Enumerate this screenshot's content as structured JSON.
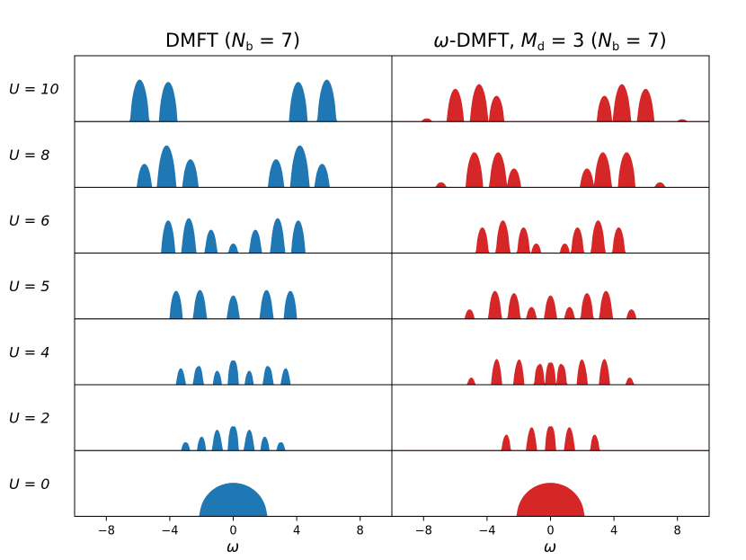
{
  "chart_data": {
    "type": "area",
    "panels": [
      {
        "title": "DMFT (N_b = 7)",
        "color": "#1f77b4"
      },
      {
        "title": "ω-DMFT, M_d = 3 (N_b = 7)",
        "color": "#d62728"
      }
    ],
    "rows": [
      {
        "label": "U = 10",
        "U": 10
      },
      {
        "label": "U = 8",
        "U": 8
      },
      {
        "label": "U = 6",
        "U": 6
      },
      {
        "label": "U = 5",
        "U": 5
      },
      {
        "label": "U = 4",
        "U": 4
      },
      {
        "label": "U = 2",
        "U": 2
      },
      {
        "label": "U = 0",
        "U": 0
      }
    ],
    "xlim": [
      -10,
      10
    ],
    "xticks": [
      -8,
      -4,
      0,
      4,
      8
    ],
    "xtick_labels": [
      "−8",
      "−4",
      "0",
      "4",
      "8"
    ],
    "xlabel": "ω",
    "ylabel": "",
    "peaks_omega_value_height": {
      "dmft": {
        "10": [
          [
            -5.9,
            0.9
          ],
          [
            -4.1,
            0.85
          ],
          [
            4.1,
            0.85
          ],
          [
            5.9,
            0.9
          ]
        ],
        "8": [
          [
            -5.6,
            0.5
          ],
          [
            -4.2,
            0.9
          ],
          [
            -2.7,
            0.6
          ],
          [
            2.7,
            0.6
          ],
          [
            4.2,
            0.9
          ],
          [
            5.6,
            0.5
          ]
        ],
        "6": [
          [
            -4.1,
            0.7
          ],
          [
            -2.8,
            0.75
          ],
          [
            -1.4,
            0.5
          ],
          [
            0,
            0.2
          ],
          [
            1.4,
            0.5
          ],
          [
            2.8,
            0.75
          ],
          [
            4.1,
            0.7
          ]
        ],
        "5": [
          [
            -3.6,
            0.6
          ],
          [
            -2.1,
            0.62
          ],
          [
            0,
            0.5
          ],
          [
            2.1,
            0.62
          ],
          [
            3.6,
            0.6
          ]
        ],
        "4": [
          [
            -3.3,
            0.35
          ],
          [
            -2.2,
            0.45
          ],
          [
            -1.0,
            0.3
          ],
          [
            0,
            0.6
          ],
          [
            1.0,
            0.3
          ],
          [
            2.2,
            0.45
          ],
          [
            3.3,
            0.35
          ]
        ],
        "2": [
          [
            -3.0,
            0.2
          ],
          [
            -2.0,
            0.3
          ],
          [
            -1.0,
            0.45
          ],
          [
            0,
            0.6
          ],
          [
            1.0,
            0.45
          ],
          [
            2.0,
            0.3
          ],
          [
            3.0,
            0.2
          ]
        ],
        "0": [
          [
            0,
            0.95
          ]
        ]
      },
      "omega_dmft": {
        "10": [
          [
            -7.8,
            0.06
          ],
          [
            -6.0,
            0.7
          ],
          [
            -4.5,
            0.8
          ],
          [
            -3.4,
            0.55
          ],
          [
            3.4,
            0.55
          ],
          [
            4.5,
            0.8
          ],
          [
            6.0,
            0.7
          ],
          [
            8.3,
            0.04
          ]
        ],
        "8": [
          [
            -6.9,
            0.1
          ],
          [
            -4.8,
            0.75
          ],
          [
            -3.3,
            0.75
          ],
          [
            -2.3,
            0.4
          ],
          [
            2.3,
            0.4
          ],
          [
            3.3,
            0.75
          ],
          [
            4.8,
            0.75
          ],
          [
            6.9,
            0.1
          ]
        ],
        "6": [
          [
            -4.3,
            0.55
          ],
          [
            -3.0,
            0.7
          ],
          [
            -1.7,
            0.55
          ],
          [
            -0.9,
            0.2
          ],
          [
            0.9,
            0.2
          ],
          [
            1.7,
            0.55
          ],
          [
            3.0,
            0.7
          ],
          [
            4.3,
            0.55
          ]
        ],
        "5": [
          [
            -5.1,
            0.2
          ],
          [
            -3.5,
            0.6
          ],
          [
            -2.3,
            0.55
          ],
          [
            -1.2,
            0.25
          ],
          [
            0,
            0.5
          ],
          [
            1.2,
            0.25
          ],
          [
            2.3,
            0.55
          ],
          [
            3.5,
            0.6
          ],
          [
            5.1,
            0.2
          ]
        ],
        "4": [
          [
            -5.0,
            0.15
          ],
          [
            -3.4,
            0.55
          ],
          [
            -2.0,
            0.55
          ],
          [
            -0.7,
            0.5
          ],
          [
            0,
            0.55
          ],
          [
            0.7,
            0.5
          ],
          [
            2.0,
            0.55
          ],
          [
            3.4,
            0.55
          ],
          [
            5.0,
            0.15
          ]
        ],
        "2": [
          [
            -2.8,
            0.35
          ],
          [
            -1.2,
            0.5
          ],
          [
            0,
            0.6
          ],
          [
            1.2,
            0.5
          ],
          [
            2.8,
            0.35
          ]
        ],
        "0": [
          [
            0,
            0.95
          ]
        ]
      }
    }
  }
}
